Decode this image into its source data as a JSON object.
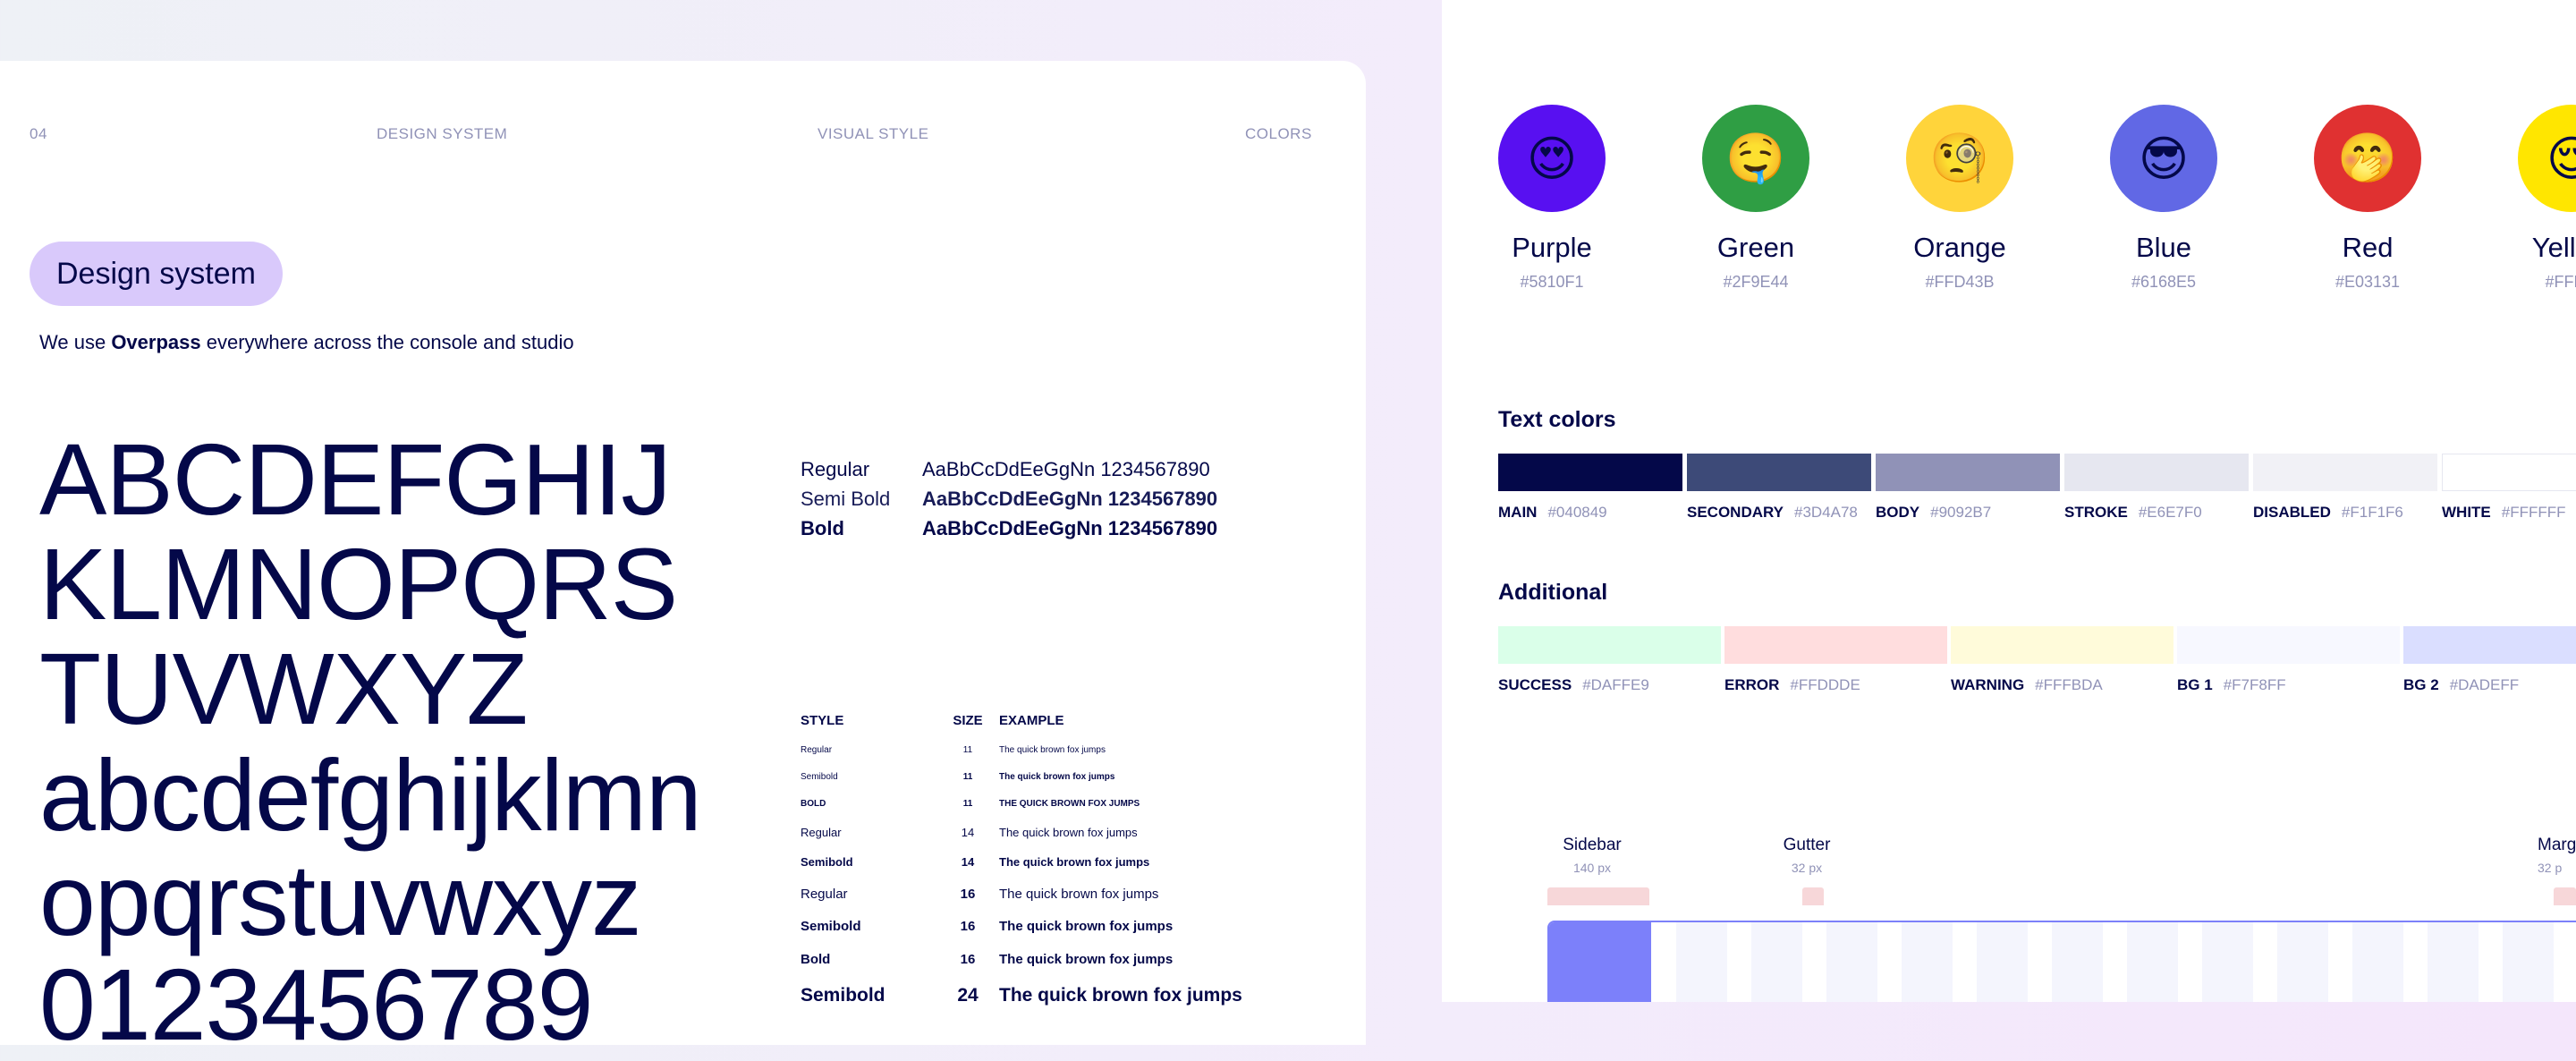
{
  "header": {
    "page_number": "04",
    "section": "DESIGN SYSTEM",
    "subsection": "VISUAL STYLE",
    "topic": "COLORS"
  },
  "pill_title": "Design system",
  "lead": {
    "prefix": "We use ",
    "font_name": "Overpass",
    "suffix": " everywhere across the console and studio"
  },
  "specimen_lines": [
    "ABCDEFGHIJ",
    "KLMNOPQRS",
    "TUVWXYZ",
    "abcdefghijklmn",
    "opqrstuvwxyz",
    "0123456789"
  ],
  "weights": [
    {
      "name": "Regular",
      "sample": "AaBbCcDdEeGgNn 1234567890"
    },
    {
      "name": "Semi Bold",
      "sample": "AaBbCcDdEeGgNn 1234567890"
    },
    {
      "name": "Bold",
      "sample": "AaBbCcDdEeGgNn 1234567890"
    }
  ],
  "type_table": {
    "headers": [
      "STYLE",
      "SIZE",
      "EXAMPLE"
    ],
    "rows": [
      {
        "style": "Regular",
        "size": "11",
        "example": "The quick brown fox jumps"
      },
      {
        "style": "Semibold",
        "size": "11",
        "example": "The quick brown fox jumps"
      },
      {
        "style": "BOLD",
        "size": "11",
        "example": "THE QUICK BROWN FOX JUMPS"
      },
      {
        "style": "Regular",
        "size": "14",
        "example": "The quick brown fox jumps"
      },
      {
        "style": "Semibold",
        "size": "14",
        "example": "The quick brown fox jumps"
      },
      {
        "style": "Regular",
        "size": "16",
        "example": "The quick brown fox jumps"
      },
      {
        "style": "Semibold",
        "size": "16",
        "example": "The quick brown fox jumps"
      },
      {
        "style": "Bold",
        "size": "16",
        "example": "The quick brown fox jumps"
      },
      {
        "style": "Semibold",
        "size": "24",
        "example": "The quick brown fox jumps"
      }
    ]
  },
  "brand_colors": [
    {
      "name": "Purple",
      "hex": "#5810F1",
      "emoji": "😍"
    },
    {
      "name": "Green",
      "hex": "#2F9E44",
      "emoji": "🤤"
    },
    {
      "name": "Orange",
      "hex": "#FFD43B",
      "emoji": "🧐"
    },
    {
      "name": "Blue",
      "hex": "#6168E5",
      "emoji": "😎"
    },
    {
      "name": "Red",
      "hex": "#E03131",
      "emoji": "🤭"
    },
    {
      "name": "Yellow",
      "hex": "#FFE...",
      "emoji": "😌"
    }
  ],
  "text_colors": {
    "title": "Text colors",
    "items": [
      {
        "label": "MAIN",
        "hex": "#040849"
      },
      {
        "label": "SECONDARY",
        "hex": "#3D4A78"
      },
      {
        "label": "BODY",
        "hex": "#9092B7"
      },
      {
        "label": "STROKE",
        "hex": "#E6E7F0"
      },
      {
        "label": "DISABLED",
        "hex": "#F1F1F6"
      },
      {
        "label": "WHITE",
        "hex": "#FFFFFF"
      }
    ]
  },
  "additional": {
    "title": "Additional",
    "items": [
      {
        "label": "SUCCESS",
        "hex": "#DAFFE9"
      },
      {
        "label": "ERROR",
        "hex": "#FFDDDE"
      },
      {
        "label": "WARNING",
        "hex": "#FFFBDA"
      },
      {
        "label": "BG 1",
        "hex": "#F7F8FF"
      },
      {
        "label": "BG 2",
        "hex": "#DADEFF"
      }
    ]
  },
  "grid_labels": [
    {
      "title": "Sidebar",
      "sub": "140 px"
    },
    {
      "title": "Gutter",
      "sub": "32 px"
    },
    {
      "title": "Marg",
      "sub": "32 p"
    }
  ],
  "colors": {
    "main": "#040849",
    "pill_bg": "#D9C9FB",
    "grid_sidebar": "#7C80FA",
    "grid_column": "#F4F5FD",
    "grid_marker": "#F7D7D9"
  }
}
